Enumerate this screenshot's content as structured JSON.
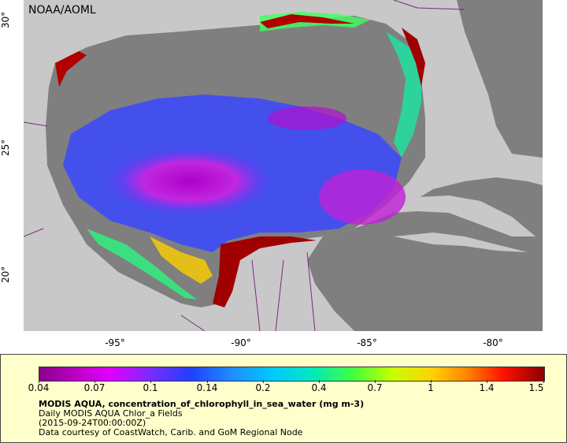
{
  "map": {
    "credit": "NOAA/AOML",
    "lat_ticks": [
      "30°",
      "25°",
      "20°"
    ],
    "lon_ticks": [
      "-95°",
      "-90°",
      "-85°",
      "-80°"
    ],
    "colors": {
      "land": "#c8c8c8",
      "no_data": "#7f7f7f",
      "border_line": "#7a2a7a"
    }
  },
  "legend": {
    "ticks": [
      "0.04",
      "0.07",
      "0.1",
      "0.14",
      "0.2",
      "0.4",
      "0.7",
      "1",
      "1.4",
      "1.5"
    ],
    "title": "MODIS AQUA, concentration_of_chlorophyll_in_sea_water (mg m-3)",
    "line1": "Daily MODIS AQUA Chlor_a Fields",
    "line2": "(2015-09-24T00:00:00Z)",
    "line3": "Data courtesy of CoastWatch, Carib. and GoM Regional Node"
  }
}
